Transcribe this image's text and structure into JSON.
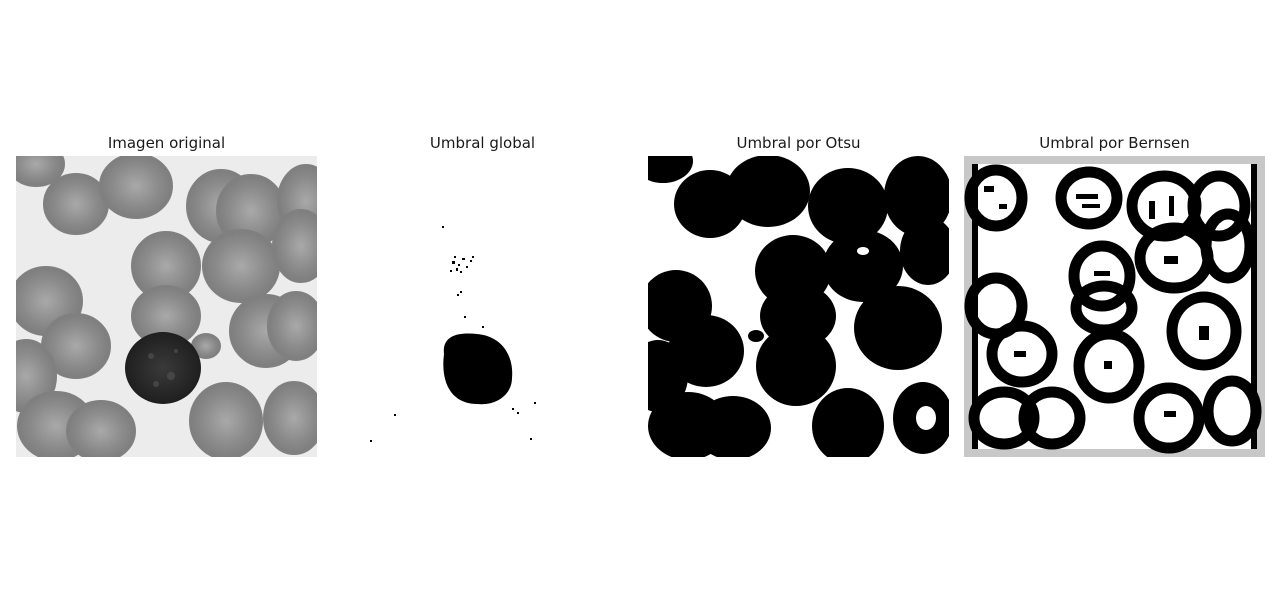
{
  "figure": {
    "panels": [
      {
        "title": "Imagen original"
      },
      {
        "title": "Umbral global"
      },
      {
        "title": "Umbral por Otsu"
      },
      {
        "title": "Umbral por Bernsen"
      }
    ]
  }
}
